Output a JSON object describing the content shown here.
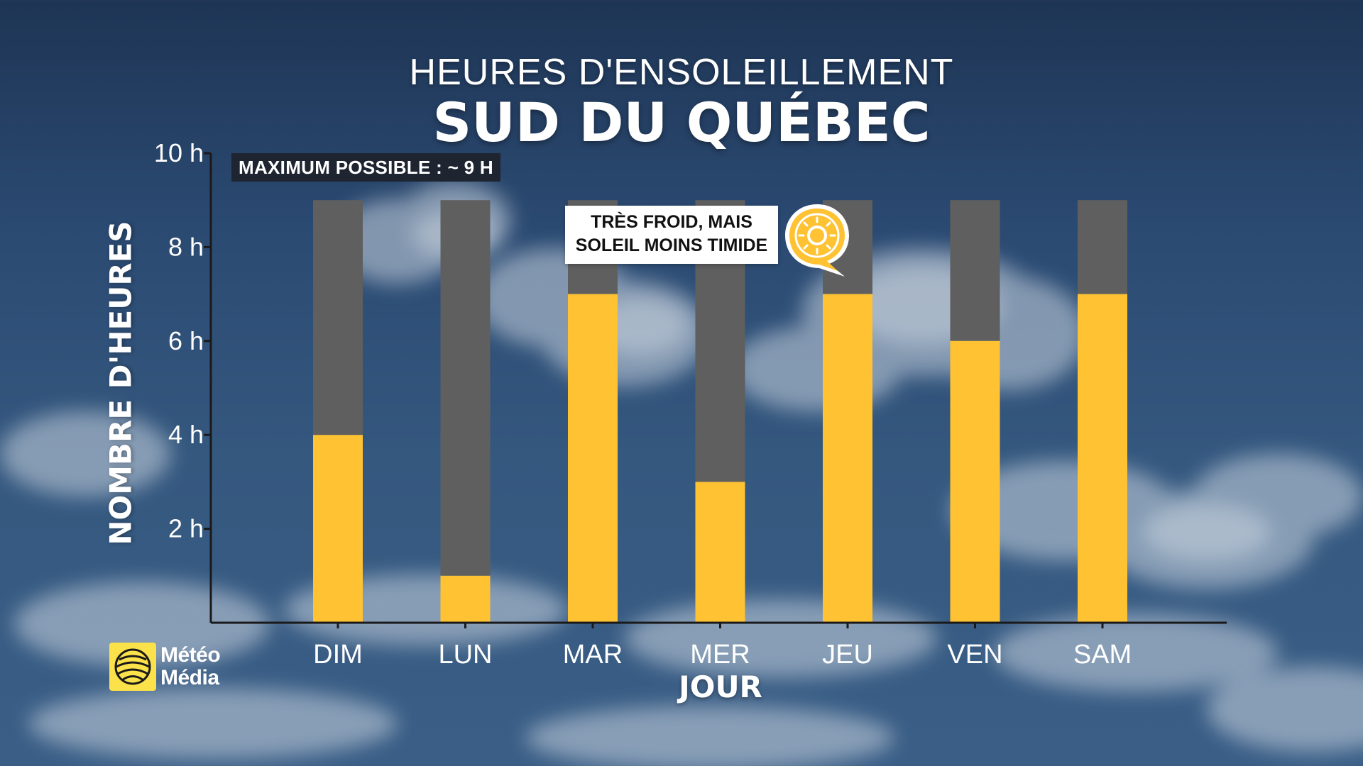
{
  "header": {
    "title": "HEURES D'ENSOLEILLEMENT",
    "subtitle": "SUD DU QUÉBEC"
  },
  "annotations": {
    "max_label": "MAXIMUM POSSIBLE : ~ 9 H",
    "callout_line1": "TRÈS FROID, MAIS",
    "callout_line2": "SOLEIL MOINS TIMIDE",
    "callout_icon": "sun-icon"
  },
  "brand": {
    "line1": "Météo",
    "line2": "Média",
    "icon": "meteo-media-logo-icon"
  },
  "colors": {
    "sun": "#fec233",
    "remaining": "#5f5f5f",
    "axis": "#1a1a1a"
  },
  "chart_data": {
    "type": "bar",
    "stacked": true,
    "categories": [
      "DIM",
      "LUN",
      "MAR",
      "MER",
      "JEU",
      "VEN",
      "SAM"
    ],
    "series": [
      {
        "values": [
          4,
          1,
          7,
          3,
          7,
          6,
          7
        ]
      },
      {
        "values": [
          5,
          8,
          2,
          6,
          2,
          3,
          2
        ]
      }
    ],
    "xlabel": "JOUR",
    "ylabel": "NOMBRE D'HEURES",
    "ylim": [
      0,
      10
    ],
    "yticks": [
      2,
      4,
      6,
      8,
      10
    ],
    "ytick_labels": [
      "2 h",
      "4 h",
      "6 h",
      "8 h",
      "10 h"
    ],
    "grid": false
  }
}
